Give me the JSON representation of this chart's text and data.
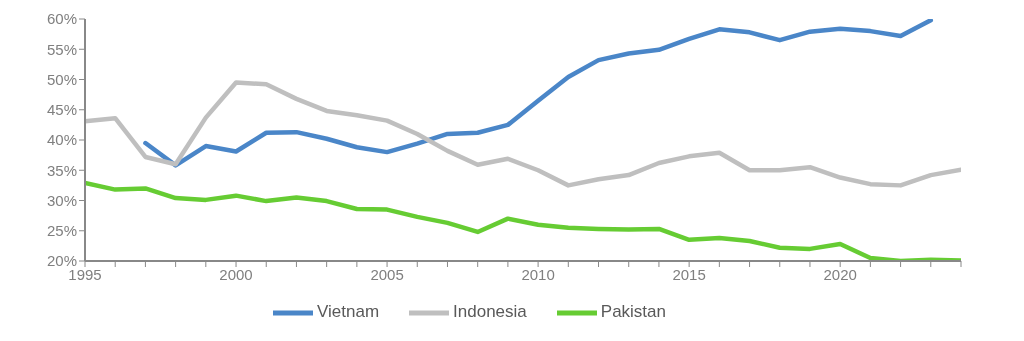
{
  "chart_data": {
    "type": "line",
    "x": [
      1995,
      1996,
      1997,
      1998,
      1999,
      2000,
      2001,
      2002,
      2003,
      2004,
      2005,
      2006,
      2007,
      2008,
      2009,
      2010,
      2011,
      2012,
      2013,
      2014,
      2015,
      2016,
      2017,
      2018,
      2019,
      2020,
      2021,
      2022,
      2023,
      2024
    ],
    "series": [
      {
        "name": "Vietnam",
        "color": "#4a86c8",
        "values": [
          null,
          null,
          39.5,
          35.8,
          39.0,
          38.1,
          41.2,
          41.3,
          40.2,
          38.8,
          38.0,
          39.4,
          41.0,
          41.2,
          42.5,
          46.5,
          50.4,
          53.2,
          54.3,
          54.9,
          56.7,
          58.3,
          57.8,
          56.5,
          57.9,
          58.4,
          58.0,
          57.2,
          59.8,
          null
        ]
      },
      {
        "name": "Indonesia",
        "color": "#bfbfbf",
        "values": [
          43.1,
          43.6,
          37.2,
          36.0,
          43.7,
          49.5,
          49.2,
          46.8,
          44.8,
          44.1,
          43.2,
          41.0,
          38.2,
          35.9,
          36.9,
          35.0,
          32.5,
          33.5,
          34.2,
          36.2,
          37.3,
          37.9,
          35.0,
          35.0,
          35.5,
          33.8,
          32.7,
          32.5,
          34.2,
          35.1
        ]
      },
      {
        "name": "Pakistan",
        "color": "#66cc33",
        "values": [
          32.9,
          31.8,
          32.0,
          30.4,
          30.1,
          30.8,
          29.9,
          30.5,
          29.9,
          28.6,
          28.5,
          27.3,
          26.3,
          24.8,
          27.0,
          26.0,
          25.5,
          25.3,
          25.2,
          25.3,
          23.5,
          23.8,
          23.3,
          22.2,
          22.0,
          22.8,
          20.5,
          20.0,
          20.2,
          20.1
        ]
      }
    ],
    "xlim": [
      1995,
      2024
    ],
    "xticks": [
      1995,
      {
        "value": 1996,
        "label": null
      },
      {
        "value": 1997,
        "label": null
      },
      {
        "value": 1998,
        "label": null
      },
      {
        "value": 1999,
        "label": null
      },
      2000,
      {
        "value": 2001,
        "label": null
      },
      {
        "value": 2002,
        "label": null
      },
      {
        "value": 2003,
        "label": null
      },
      {
        "value": 2004,
        "label": null
      },
      2005,
      {
        "value": 2006,
        "label": null
      },
      {
        "value": 2007,
        "label": null
      },
      {
        "value": 2008,
        "label": null
      },
      {
        "value": 2009,
        "label": null
      },
      2010,
      {
        "value": 2011,
        "label": null
      },
      {
        "value": 2012,
        "label": null
      },
      {
        "value": 2013,
        "label": null
      },
      {
        "value": 2014,
        "label": null
      },
      2015,
      {
        "value": 2016,
        "label": null
      },
      {
        "value": 2017,
        "label": null
      },
      {
        "value": 2018,
        "label": null
      },
      {
        "value": 2019,
        "label": null
      },
      2020,
      {
        "value": 2021,
        "label": null
      },
      {
        "value": 2022,
        "label": null
      },
      {
        "value": 2023,
        "label": null
      },
      {
        "value": 2024,
        "label": null
      }
    ],
    "ylim": [
      20,
      60
    ],
    "yticks": [
      {
        "value": 20,
        "label": "20%"
      },
      {
        "value": 25,
        "label": "25%"
      },
      {
        "value": 30,
        "label": "30%"
      },
      {
        "value": 35,
        "label": "35%"
      },
      {
        "value": 40,
        "label": "40%"
      },
      {
        "value": 45,
        "label": "45%"
      },
      {
        "value": 50,
        "label": "50%"
      },
      {
        "value": 55,
        "label": "55%"
      },
      {
        "value": 60,
        "label": "60%"
      }
    ],
    "grid": false,
    "legend": "bottom",
    "marker": "none",
    "line_style": "solid"
  }
}
